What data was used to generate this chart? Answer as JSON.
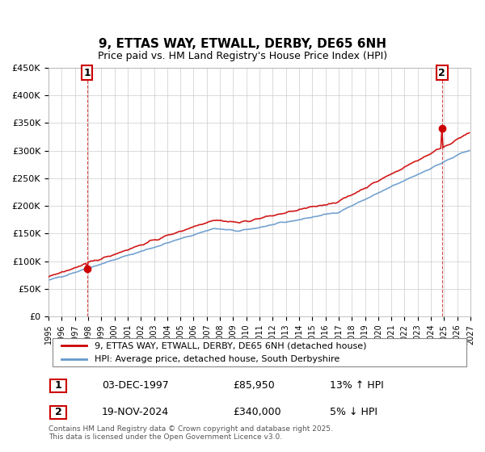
{
  "title": "9, ETTAS WAY, ETWALL, DERBY, DE65 6NH",
  "subtitle": "Price paid vs. HM Land Registry's House Price Index (HPI)",
  "legend_line1": "9, ETTAS WAY, ETWALL, DERBY, DE65 6NH (detached house)",
  "legend_line2": "HPI: Average price, detached house, South Derbyshire",
  "annotation1_label": "1",
  "annotation1_date": "03-DEC-1997",
  "annotation1_price": "£85,950",
  "annotation1_hpi": "13% ↑ HPI",
  "annotation2_label": "2",
  "annotation2_date": "19-NOV-2024",
  "annotation2_price": "£340,000",
  "annotation2_hpi": "5% ↓ HPI",
  "footer": "Contains HM Land Registry data © Crown copyright and database right 2025.\nThis data is licensed under the Open Government Licence v3.0.",
  "plot_color_red": "#cc0000",
  "plot_color_blue": "#6699cc",
  "annotation_box_color": "#cc0000",
  "grid_color": "#cccccc",
  "bg_color": "#ffffff",
  "ylim": [
    0,
    450000
  ],
  "yticks": [
    0,
    50000,
    100000,
    150000,
    200000,
    250000,
    300000,
    350000,
    400000,
    450000
  ],
  "year_start": 1995,
  "year_end": 2027
}
